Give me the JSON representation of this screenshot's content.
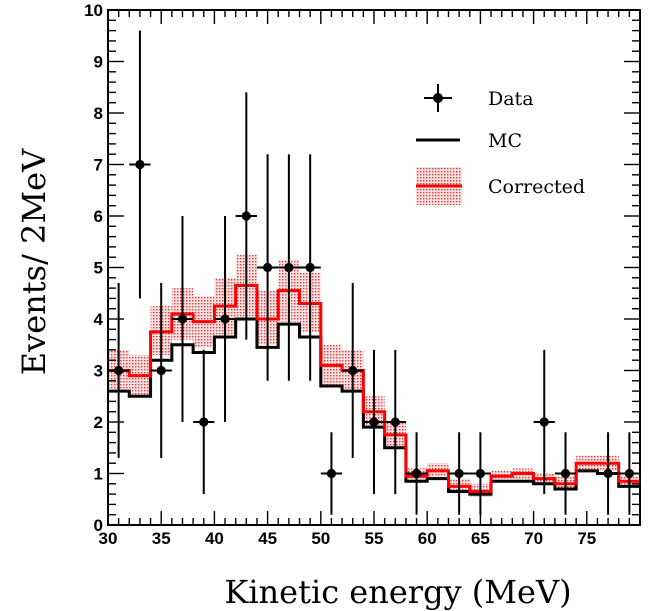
{
  "chart_data": {
    "type": "histogram",
    "xlabel": "Kinetic energy (MeV)",
    "ylabel": "Events/ 2MeV",
    "xlim": [
      30,
      80
    ],
    "ylim": [
      0,
      10
    ],
    "x_tick_labels": [
      "30",
      "35",
      "40",
      "45",
      "50",
      "55",
      "60",
      "65",
      "70",
      "75"
    ],
    "y_tick_labels": [
      "0",
      "1",
      "2",
      "3",
      "4",
      "5",
      "6",
      "7",
      "8",
      "9",
      "10"
    ],
    "bin_edges": [
      30,
      32,
      34,
      36,
      38,
      40,
      42,
      44,
      46,
      48,
      50,
      52,
      54,
      56,
      58,
      60,
      62,
      64,
      66,
      68,
      70,
      72,
      74,
      76,
      78,
      80
    ],
    "legend": {
      "position": "top-right",
      "entries": [
        {
          "label": "Data",
          "style": "marker-errorbar",
          "color": "#000000"
        },
        {
          "label": "MC",
          "style": "line",
          "color": "#000000"
        },
        {
          "label": "Corrected",
          "style": "line-band",
          "color": "#ff0000"
        }
      ]
    },
    "series": [
      {
        "name": "MC",
        "style": "step",
        "color": "#000000",
        "values": [
          2.6,
          2.5,
          3.2,
          3.5,
          3.35,
          3.65,
          4.0,
          3.45,
          3.9,
          3.65,
          2.7,
          2.6,
          1.9,
          1.5,
          0.85,
          0.9,
          0.65,
          0.6,
          0.85,
          0.85,
          0.8,
          0.7,
          1.05,
          1.0,
          0.75
        ]
      },
      {
        "name": "Corrected",
        "style": "step-band",
        "color": "#ff0000",
        "band_color": "#f2a0a0",
        "values": [
          3.0,
          2.9,
          3.75,
          4.1,
          3.95,
          4.25,
          4.65,
          4.0,
          4.55,
          4.3,
          3.1,
          3.0,
          2.2,
          1.75,
          0.95,
          1.05,
          0.75,
          0.65,
          0.95,
          1.0,
          0.9,
          0.8,
          1.2,
          1.2,
          0.85
        ],
        "band_low": [
          2.65,
          2.5,
          3.3,
          3.6,
          3.45,
          3.7,
          4.05,
          3.5,
          3.95,
          3.75,
          2.7,
          2.6,
          1.9,
          1.5,
          0.85,
          0.9,
          0.65,
          0.55,
          0.85,
          0.85,
          0.8,
          0.7,
          1.05,
          1.05,
          0.75
        ],
        "band_high": [
          3.4,
          3.3,
          4.25,
          4.6,
          4.45,
          4.8,
          5.25,
          4.55,
          5.15,
          4.9,
          3.5,
          3.4,
          2.5,
          2.0,
          1.1,
          1.2,
          0.9,
          0.8,
          1.05,
          1.1,
          1.0,
          0.95,
          1.35,
          1.35,
          0.95
        ]
      },
      {
        "name": "Data",
        "style": "points",
        "color": "#000000",
        "x": [
          31,
          33,
          35,
          37,
          39,
          41,
          43,
          45,
          47,
          49,
          51,
          53,
          55,
          57,
          59,
          63,
          65,
          71,
          73,
          77,
          79
        ],
        "y": [
          3,
          7,
          3,
          4,
          2,
          4,
          6,
          5,
          5,
          5,
          1,
          3,
          2,
          2,
          1,
          1,
          1,
          2,
          1,
          1,
          1
        ],
        "err_low": [
          1.7,
          2.6,
          1.7,
          2.0,
          1.4,
          2.0,
          2.4,
          2.2,
          2.2,
          2.2,
          0.8,
          1.7,
          1.4,
          1.4,
          0.8,
          0.8,
          0.8,
          1.4,
          0.8,
          0.8,
          0.8
        ],
        "err_high": [
          1.7,
          2.6,
          1.7,
          2.0,
          1.4,
          2.0,
          2.4,
          2.2,
          2.2,
          2.2,
          0.8,
          1.7,
          1.4,
          1.4,
          0.8,
          0.8,
          0.8,
          1.4,
          0.8,
          0.8,
          0.8
        ]
      }
    ]
  }
}
